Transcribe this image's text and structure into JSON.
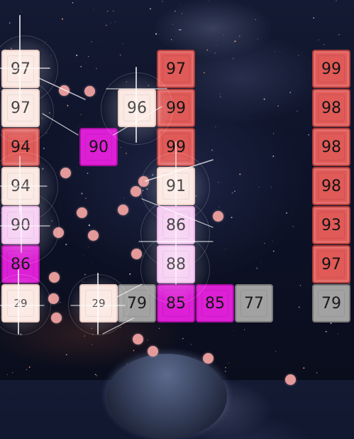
{
  "board": {
    "tiles": [
      {
        "value": "97",
        "style": "cream"
      },
      {
        "value": "97",
        "style": "cream"
      },
      {
        "value": "94",
        "style": "red"
      },
      {
        "value": "94",
        "style": "cream"
      },
      {
        "value": "90",
        "style": "pink"
      },
      {
        "value": "86",
        "style": "magenta"
      },
      {
        "value": "29",
        "style": "cream"
      },
      {
        "value": "90",
        "style": "magenta"
      },
      {
        "value": "96",
        "style": "cream"
      },
      {
        "value": "29",
        "style": "cream"
      },
      {
        "value": "79",
        "style": "gray"
      },
      {
        "value": "97",
        "style": "red"
      },
      {
        "value": "99",
        "style": "red"
      },
      {
        "value": "99",
        "style": "red"
      },
      {
        "value": "91",
        "style": "cream"
      },
      {
        "value": "86",
        "style": "pink"
      },
      {
        "value": "88",
        "style": "pink"
      },
      {
        "value": "85",
        "style": "magenta"
      },
      {
        "value": "85",
        "style": "magenta"
      },
      {
        "value": "77",
        "style": "gray"
      },
      {
        "value": "99",
        "style": "red"
      },
      {
        "value": "98",
        "style": "red"
      },
      {
        "value": "98",
        "style": "red"
      },
      {
        "value": "98",
        "style": "red"
      },
      {
        "value": "93",
        "style": "red"
      },
      {
        "value": "97",
        "style": "red"
      },
      {
        "value": "79",
        "style": "gray"
      }
    ],
    "colors": {
      "red": "#e05a58",
      "cream": "#fbe6df",
      "magenta": "#dd1fd6",
      "pink": "#f6c9f2",
      "gray": "#a2a2a2",
      "ball": "#e59a9a"
    }
  }
}
